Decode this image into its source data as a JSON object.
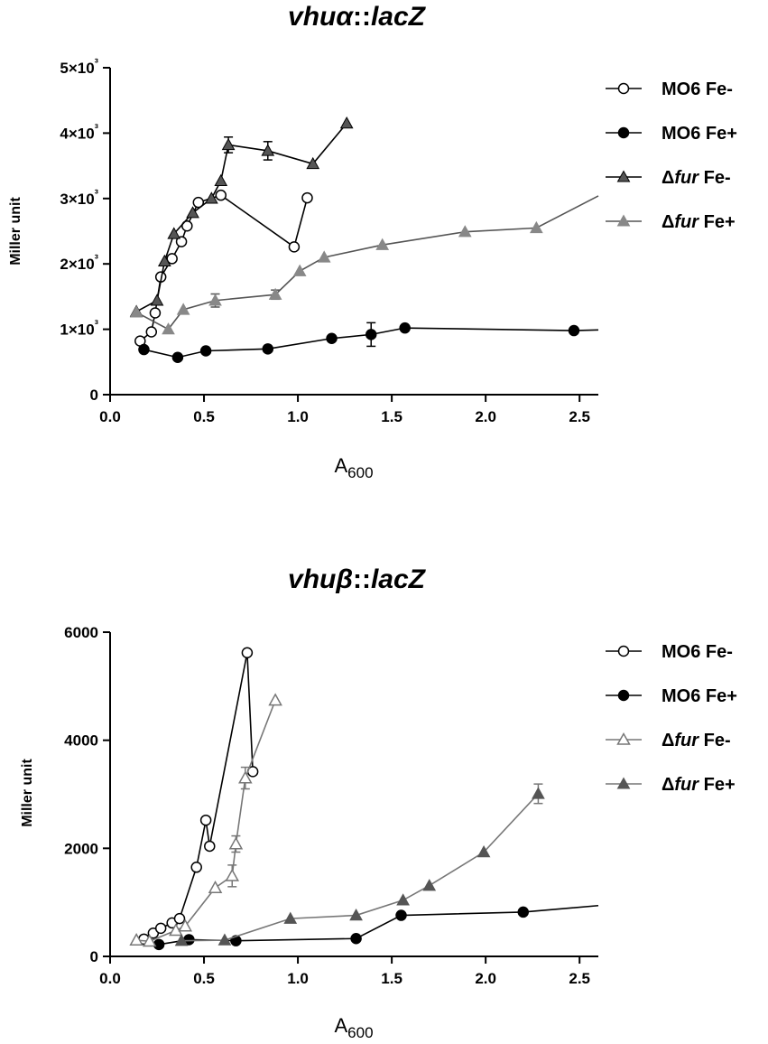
{
  "figure": {
    "charts": [
      {
        "title_parts": [
          "vhuα",
          "::",
          "lacZ"
        ],
        "chart_data": {
          "type": "line",
          "title": "vhuα::lacZ",
          "xlabel": "A600",
          "ylabel": "Miller unit",
          "xlim": [
            0,
            2.6
          ],
          "ylim": [
            0,
            5000
          ],
          "x_ticks": [
            0.0,
            0.5,
            1.0,
            1.5,
            2.0,
            2.5
          ],
          "x_tick_labels": [
            "0.0",
            "0.5",
            "1.0",
            "1.5",
            "2.0",
            "2.5"
          ],
          "y_ticks": [
            0,
            1000,
            2000,
            3000,
            4000,
            5000
          ],
          "y_tick_labels": [
            "0",
            "1×10³",
            "2×10³",
            "3×10³",
            "4×10³",
            "5×10³"
          ],
          "legend_position": "right",
          "series": [
            {
              "name": "MO6 Fe-",
              "legend_parts": [
                "MO6 Fe-"
              ],
              "marker": "circle-open",
              "color": "#000000",
              "x": [
                0.16,
                0.22,
                0.24,
                0.27,
                0.33,
                0.38,
                0.41,
                0.47,
                0.59,
                0.98,
                1.05
              ],
              "y": [
                820,
                960,
                1250,
                1800,
                2080,
                2340,
                2580,
                2940,
                3050,
                2260,
                3010
              ],
              "err": [
                0,
                0,
                0,
                0,
                0,
                0,
                0,
                0,
                0,
                0,
                0
              ]
            },
            {
              "name": "MO6 Fe+",
              "legend_parts": [
                "MO6 Fe+"
              ],
              "marker": "circle-filled",
              "color": "#000000",
              "x": [
                0.18,
                0.36,
                0.51,
                0.84,
                1.18,
                1.39,
                1.57,
                2.47,
                2.6
              ],
              "y": [
                690,
                570,
                670,
                700,
                860,
                920,
                1020,
                980,
                990
              ],
              "err": [
                0,
                0,
                0,
                0,
                0,
                180,
                0,
                0,
                0
              ]
            },
            {
              "name": "Δfur Fe-",
              "legend_parts": [
                "Δ",
                "fur",
                " Fe-"
              ],
              "marker": "triangle-filled",
              "color": "#555555",
              "line": "#000000",
              "x": [
                0.14,
                0.25,
                0.29,
                0.34,
                0.44,
                0.54,
                0.59,
                0.63,
                0.84,
                1.08,
                1.26
              ],
              "y": [
                1270,
                1440,
                2040,
                2460,
                2780,
                3000,
                3270,
                3820,
                3730,
                3530,
                4150
              ],
              "err": [
                0,
                0,
                0,
                0,
                0,
                0,
                0,
                120,
                140,
                0,
                0
              ]
            },
            {
              "name": "Δfur Fe+",
              "legend_parts": [
                "Δ",
                "fur",
                " Fe+"
              ],
              "marker": "triangle-filled",
              "color": "#888888",
              "line": "#555555",
              "x": [
                0.14,
                0.31,
                0.39,
                0.56,
                0.88,
                1.01,
                1.14,
                1.45,
                1.89,
                2.27,
                2.6
              ],
              "y": [
                1260,
                1000,
                1300,
                1440,
                1530,
                1890,
                2100,
                2290,
                2490,
                2550,
                3040
              ],
              "err": [
                0,
                0,
                0,
                100,
                70,
                0,
                0,
                0,
                0,
                0,
                0
              ]
            }
          ]
        }
      },
      {
        "title_parts": [
          "vhuβ",
          "::",
          "lacZ"
        ],
        "chart_data": {
          "type": "line",
          "title": "vhuβ::lacZ",
          "xlabel": "A600",
          "ylabel": "Miller unit",
          "xlim": [
            0,
            2.6
          ],
          "ylim": [
            0,
            6000
          ],
          "x_ticks": [
            0.0,
            0.5,
            1.0,
            1.5,
            2.0,
            2.5
          ],
          "x_tick_labels": [
            "0.0",
            "0.5",
            "1.0",
            "1.5",
            "2.0",
            "2.5"
          ],
          "y_ticks": [
            0,
            2000,
            4000,
            6000
          ],
          "y_tick_labels": [
            "0",
            "2000",
            "4000",
            "6000"
          ],
          "legend_position": "right",
          "series": [
            {
              "name": "MO6 Fe-",
              "legend_parts": [
                "MO6 Fe-"
              ],
              "marker": "circle-open",
              "color": "#000000",
              "x": [
                0.18,
                0.23,
                0.27,
                0.33,
                0.37,
                0.46,
                0.51,
                0.53,
                0.73,
                0.76
              ],
              "y": [
                320,
                430,
                520,
                620,
                700,
                1650,
                2520,
                2040,
                5620,
                3420
              ],
              "err": [
                0,
                0,
                0,
                0,
                0,
                0,
                0,
                0,
                0,
                0
              ]
            },
            {
              "name": "MO6 Fe+",
              "legend_parts": [
                "MO6 Fe+"
              ],
              "marker": "circle-filled",
              "color": "#000000",
              "x": [
                0.26,
                0.42,
                0.67,
                1.31,
                1.55,
                2.2,
                2.6
              ],
              "y": [
                220,
                310,
                290,
                330,
                760,
                820,
                940
              ],
              "err": [
                0,
                0,
                0,
                0,
                0,
                0,
                0
              ]
            },
            {
              "name": "Δfur Fe-",
              "legend_parts": [
                "Δ",
                "fur",
                " Fe-"
              ],
              "marker": "triangle-open",
              "color": "#777777",
              "x": [
                0.14,
                0.21,
                0.35,
                0.4,
                0.56,
                0.65,
                0.67,
                0.72,
                0.88
              ],
              "y": [
                300,
                280,
                480,
                560,
                1270,
                1490,
                2080,
                3300,
                4740
              ],
              "err": [
                0,
                0,
                0,
                0,
                0,
                200,
                150,
                200,
                0
              ]
            },
            {
              "name": "Δfur Fe+",
              "legend_parts": [
                "Δ",
                "fur",
                " Fe+"
              ],
              "marker": "triangle-filled",
              "color": "#555555",
              "line": "#777777",
              "x": [
                0.38,
                0.61,
                0.96,
                1.31,
                1.56,
                1.7,
                1.99,
                2.28
              ],
              "y": [
                290,
                300,
                700,
                760,
                1040,
                1310,
                1930,
                3010
              ],
              "err": [
                0,
                0,
                0,
                0,
                0,
                0,
                0,
                180
              ]
            }
          ]
        }
      }
    ]
  }
}
